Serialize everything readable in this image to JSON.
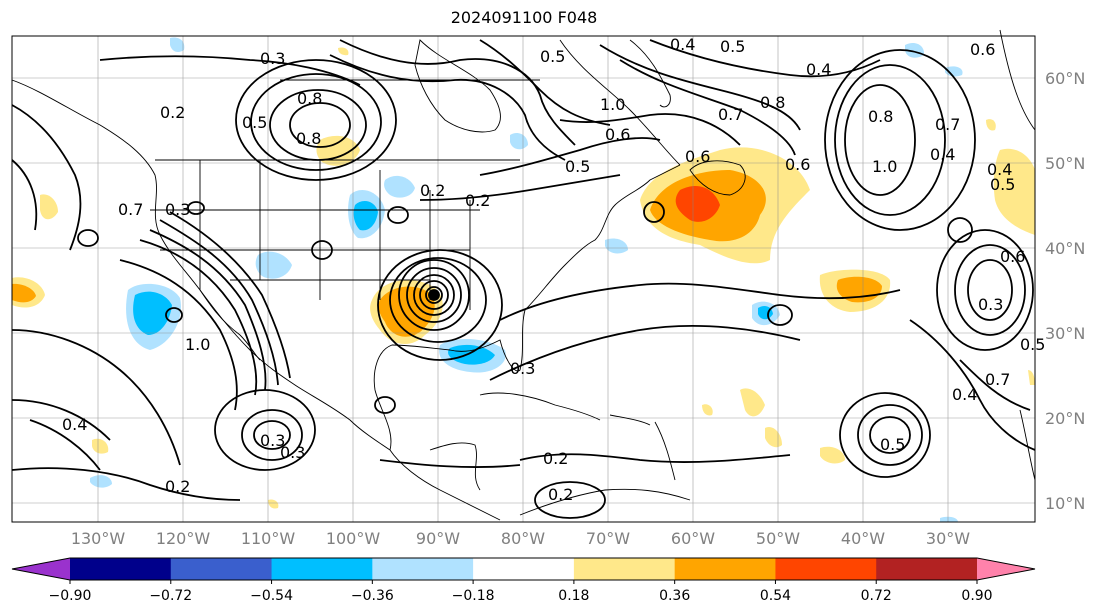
{
  "title": "2024091100 F048",
  "lon_labels": [
    "130°W",
    "120°W",
    "110°W",
    "100°W",
    "90°W",
    "80°W",
    "70°W",
    "60°W",
    "50°W",
    "40°W",
    "30°W"
  ],
  "lat_labels": [
    "60°N",
    "50°N",
    "40°N",
    "30°N",
    "20°N",
    "10°N"
  ],
  "contour_labels": [
    "0.3",
    "0.2",
    "0.4",
    "0.5",
    "0.6",
    "0.8",
    "1.0",
    "0.7",
    "0.5",
    "0.6",
    "0.8",
    "1.0",
    "0.4",
    "0.5",
    "0.6",
    "0.8",
    "1.0",
    "0.7",
    "0.2",
    "0.3",
    "0.5",
    "0.6",
    "0.8",
    "0.4",
    "0.3",
    "0.2",
    "0.3",
    "0.5",
    "0.4",
    "0.2",
    "0.5",
    "0.6",
    "0.7",
    "0.4",
    "0.3",
    "0.2",
    "0.2",
    "0.3",
    "0.7",
    "0.4",
    "0.5"
  ],
  "colorbar": {
    "ticks": [
      "−0.90",
      "−0.72",
      "−0.54",
      "−0.36",
      "−0.18",
      "0.18",
      "0.36",
      "0.54",
      "0.72",
      "0.90"
    ],
    "colors": [
      "#9a32cd",
      "#00008b",
      "#3a5fcd",
      "#00bfff",
      "#b0e2ff",
      "#ffffff",
      "#ffe88a",
      "#ffa500",
      "#ff4500",
      "#b22222",
      "#ff82ab"
    ]
  }
}
